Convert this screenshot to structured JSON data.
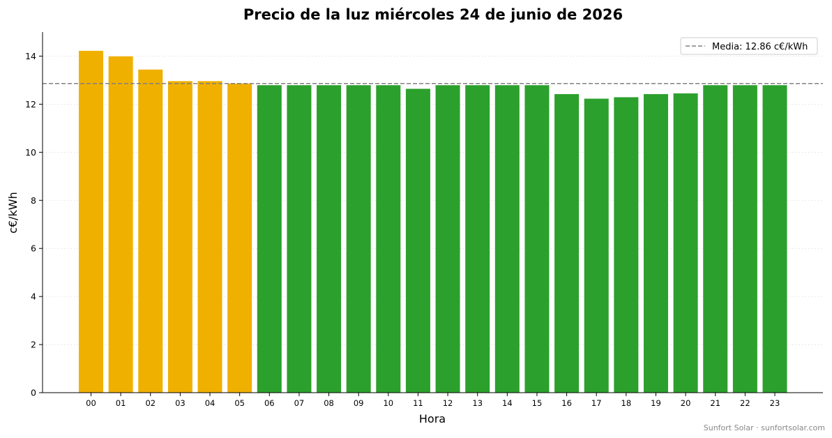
{
  "chart_data": {
    "type": "bar",
    "title": "Precio de la luz miércoles 24 de junio de 2026",
    "xlabel": "Hora",
    "ylabel": "c€/kWh",
    "categories": [
      "00",
      "01",
      "02",
      "03",
      "04",
      "05",
      "06",
      "07",
      "08",
      "09",
      "10",
      "11",
      "12",
      "13",
      "14",
      "15",
      "16",
      "17",
      "18",
      "19",
      "20",
      "21",
      "22",
      "23"
    ],
    "values": [
      14.22,
      13.99,
      13.44,
      12.96,
      12.96,
      12.86,
      12.79,
      12.79,
      12.79,
      12.79,
      12.79,
      12.64,
      12.79,
      12.79,
      12.79,
      12.79,
      12.42,
      12.23,
      12.29,
      12.42,
      12.45,
      12.79,
      12.79,
      12.79
    ],
    "bar_colors": [
      "#f0b000",
      "#f0b000",
      "#f0b000",
      "#f0b000",
      "#f0b000",
      "#f0b000",
      "#2ca02c",
      "#2ca02c",
      "#2ca02c",
      "#2ca02c",
      "#2ca02c",
      "#2ca02c",
      "#2ca02c",
      "#2ca02c",
      "#2ca02c",
      "#2ca02c",
      "#2ca02c",
      "#2ca02c",
      "#2ca02c",
      "#2ca02c",
      "#2ca02c",
      "#2ca02c",
      "#2ca02c",
      "#2ca02c"
    ],
    "ylim": [
      0,
      15
    ],
    "yticks": [
      0,
      2,
      4,
      6,
      8,
      10,
      12,
      14
    ],
    "grid": "horizontal-dotted",
    "mean_line": {
      "value": 12.86,
      "color": "#808080",
      "legend_label": "Media: 12.86 c€/kWh"
    },
    "legend_position": "top-right"
  },
  "footer": "Sunfort Solar · sunfortsolar.com"
}
